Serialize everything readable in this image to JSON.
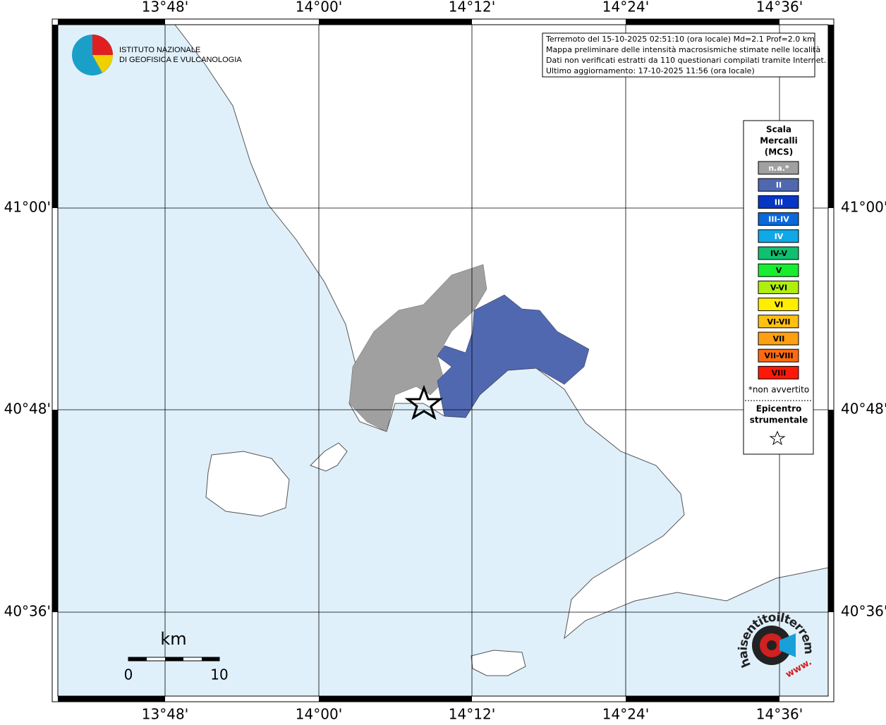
{
  "logo": {
    "line1": "ISTITUTO NAZIONALE",
    "line2": "DI GEOFISICA E VULCANOLOGIA"
  },
  "graticule": {
    "longitudes": [
      "13°48'",
      "14°00'",
      "14°12'",
      "14°24'",
      "14°36'"
    ],
    "latitudes": [
      "41°00'",
      "40°48'",
      "40°36'"
    ]
  },
  "info": [
    "Terremoto del 15-10-2025 02:51:10 (ora locale) Md=2.1 Prof=2.0 km",
    "Mappa preliminare delle intensità macrosismiche stimate nelle località",
    "Dati non verificati estratti da 110 questionari compilati tramite Internet.",
    "Ultimo aggiornamento: 17-10-2025 11:56 (ora locale)"
  ],
  "legend": {
    "title": [
      "Scala",
      "Mercalli",
      "(MCS)"
    ],
    "items": [
      {
        "label": "n.a.*",
        "color": "#a0a0a0"
      },
      {
        "label": "II",
        "color": "#5068b0"
      },
      {
        "label": "III",
        "color": "#0836c4"
      },
      {
        "label": "III-IV",
        "color": "#0a68d8"
      },
      {
        "label": "IV",
        "color": "#10a8e8"
      },
      {
        "label": "IV-V",
        "color": "#10c070"
      },
      {
        "label": "V",
        "color": "#18ee30"
      },
      {
        "label": "V-VI",
        "color": "#b0ee10"
      },
      {
        "label": "VI",
        "color": "#ffee00"
      },
      {
        "label": "VI-VII",
        "color": "#ffc010"
      },
      {
        "label": "VII",
        "color": "#ffa010"
      },
      {
        "label": "VII-VIII",
        "color": "#ff6a10"
      },
      {
        "label": "VIII",
        "color": "#ff1808"
      }
    ],
    "note": "*non avvertito",
    "epicenter": [
      "Epicentro",
      "strumentale"
    ]
  },
  "scale_bar": {
    "unit": "km",
    "start": "0",
    "end": "10"
  },
  "badge": {
    "text": "haisentitoilterremoto.it",
    "prefix": "www."
  }
}
